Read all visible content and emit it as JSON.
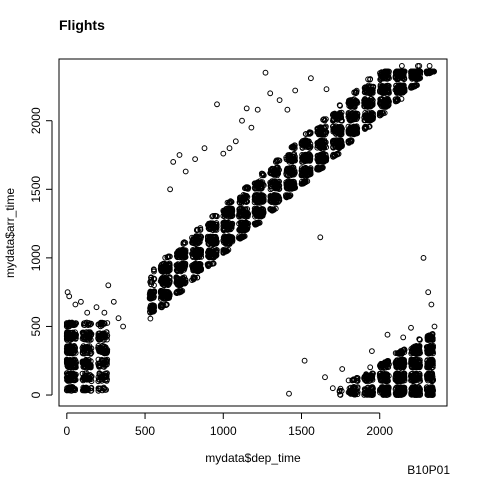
{
  "chart_data": {
    "type": "scatter",
    "title": "Flights",
    "xlabel": "mydata$dep_time",
    "ylabel": "mydata$arr_time",
    "caption": "B10P01",
    "xlim": [
      -50,
      2430
    ],
    "ylim": [
      -80,
      2450
    ],
    "xticks": [
      0,
      500,
      1000,
      1500,
      2000
    ],
    "yticks": [
      0,
      500,
      1000,
      1500,
      2000
    ],
    "grid": false,
    "marker": "open-circle",
    "marker_color": "#000000",
    "clusters": [
      {
        "name": "main-band",
        "x_range": [
          550,
          2380
        ],
        "y_offset": [
          60,
          380
        ],
        "density": "dense"
      },
      {
        "name": "early-morning",
        "x_range": [
          0,
          300
        ],
        "y_range": [
          50,
          550
        ],
        "density": "dense"
      },
      {
        "name": "overnight-wrap",
        "x_range": [
          1750,
          2370
        ],
        "y_range": [
          0,
          500
        ],
        "density": "dense"
      }
    ],
    "outliers": [
      {
        "x": 5,
        "y": 750
      },
      {
        "x": 15,
        "y": 720
      },
      {
        "x": 55,
        "y": 660
      },
      {
        "x": 90,
        "y": 680
      },
      {
        "x": 130,
        "y": 600
      },
      {
        "x": 190,
        "y": 640
      },
      {
        "x": 240,
        "y": 600
      },
      {
        "x": 265,
        "y": 800
      },
      {
        "x": 300,
        "y": 680
      },
      {
        "x": 330,
        "y": 560
      },
      {
        "x": 360,
        "y": 500
      },
      {
        "x": 660,
        "y": 1500
      },
      {
        "x": 680,
        "y": 1700
      },
      {
        "x": 720,
        "y": 1750
      },
      {
        "x": 760,
        "y": 1630
      },
      {
        "x": 820,
        "y": 1720
      },
      {
        "x": 880,
        "y": 1800
      },
      {
        "x": 960,
        "y": 2120
      },
      {
        "x": 1000,
        "y": 1760
      },
      {
        "x": 1040,
        "y": 1800
      },
      {
        "x": 1080,
        "y": 1850
      },
      {
        "x": 1120,
        "y": 2000
      },
      {
        "x": 1150,
        "y": 2090
      },
      {
        "x": 1180,
        "y": 1950
      },
      {
        "x": 1220,
        "y": 2080
      },
      {
        "x": 1270,
        "y": 2350
      },
      {
        "x": 1300,
        "y": 2200
      },
      {
        "x": 1360,
        "y": 2150
      },
      {
        "x": 1410,
        "y": 2080
      },
      {
        "x": 1460,
        "y": 2220
      },
      {
        "x": 1560,
        "y": 2310
      },
      {
        "x": 1660,
        "y": 2230
      },
      {
        "x": 1620,
        "y": 1150
      },
      {
        "x": 1520,
        "y": 250
      },
      {
        "x": 1420,
        "y": 10
      },
      {
        "x": 1650,
        "y": 130
      },
      {
        "x": 1700,
        "y": 50
      },
      {
        "x": 1760,
        "y": 190
      },
      {
        "x": 1950,
        "y": 320
      },
      {
        "x": 2050,
        "y": 440
      },
      {
        "x": 2150,
        "y": 420
      },
      {
        "x": 2200,
        "y": 490
      },
      {
        "x": 2280,
        "y": 1000
      },
      {
        "x": 2310,
        "y": 750
      },
      {
        "x": 2330,
        "y": 660
      },
      {
        "x": 2350,
        "y": 500
      }
    ]
  }
}
